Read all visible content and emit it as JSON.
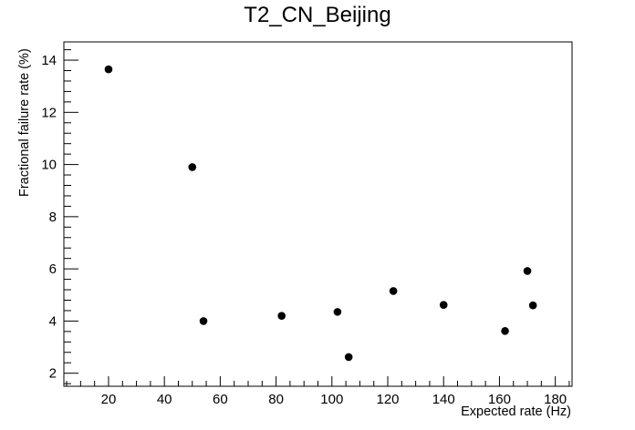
{
  "chart_data": {
    "type": "scatter",
    "title": "T2_CN_Beijing",
    "xlabel": "Expected rate (Hz)",
    "ylabel": "Fractional failure rate (%)",
    "xlim": [
      4,
      186
    ],
    "ylim": [
      1.5,
      14.7
    ],
    "x_ticks": [
      20,
      40,
      60,
      80,
      100,
      120,
      140,
      160,
      180
    ],
    "y_ticks": [
      2,
      4,
      6,
      8,
      10,
      12,
      14
    ],
    "x_minor_step": 5,
    "y_minor_step": 0.4,
    "grid": false,
    "legend": "none",
    "marker_color": "#000000",
    "points": [
      {
        "x": 20,
        "y": 13.65
      },
      {
        "x": 50,
        "y": 9.9
      },
      {
        "x": 54,
        "y": 4.0
      },
      {
        "x": 82,
        "y": 4.2
      },
      {
        "x": 102,
        "y": 4.35
      },
      {
        "x": 106,
        "y": 2.62
      },
      {
        "x": 122,
        "y": 5.15
      },
      {
        "x": 140,
        "y": 4.62
      },
      {
        "x": 162,
        "y": 3.62
      },
      {
        "x": 170,
        "y": 5.92
      },
      {
        "x": 172,
        "y": 4.6
      }
    ]
  }
}
